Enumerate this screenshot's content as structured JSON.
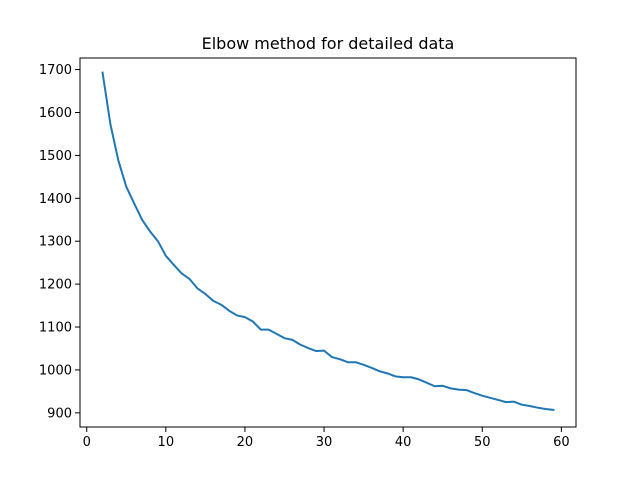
{
  "chart_data": {
    "type": "line",
    "title": "Elbow method for detailed data",
    "xlabel": "",
    "ylabel": "",
    "xlim": [
      -0.85,
      61.85
    ],
    "ylim": [
      867,
      1727
    ],
    "xticks": [
      0,
      10,
      20,
      30,
      40,
      50,
      60
    ],
    "yticks": [
      900,
      1000,
      1100,
      1200,
      1300,
      1400,
      1500,
      1600,
      1700
    ],
    "grid": false,
    "line_color": "#1f77b4",
    "series": [
      {
        "x": [
          2,
          3,
          4,
          5,
          6,
          7,
          8,
          9,
          10,
          11,
          12,
          13,
          14,
          15,
          16,
          17,
          18,
          19,
          20,
          21,
          22,
          23,
          24,
          25,
          26,
          27,
          28,
          29,
          30,
          31,
          32,
          33,
          34,
          35,
          36,
          37,
          38,
          39,
          40,
          41,
          42,
          43,
          44,
          45,
          46,
          47,
          48,
          49,
          50,
          51,
          52,
          53,
          54,
          55,
          56,
          57,
          58,
          59
        ],
        "y": [
          1693,
          1572,
          1488,
          1427,
          1388,
          1350,
          1323,
          1300,
          1266,
          1245,
          1225,
          1212,
          1190,
          1177,
          1161,
          1152,
          1138,
          1127,
          1123,
          1113,
          1094,
          1094,
          1084,
          1074,
          1070,
          1059,
          1051,
          1044,
          1045,
          1030,
          1025,
          1018,
          1018,
          1012,
          1005,
          997,
          992,
          985,
          983,
          983,
          978,
          970,
          962,
          963,
          957,
          954,
          953,
          946,
          940,
          935,
          930,
          925,
          926,
          919,
          916,
          912,
          909,
          907
        ]
      }
    ]
  }
}
